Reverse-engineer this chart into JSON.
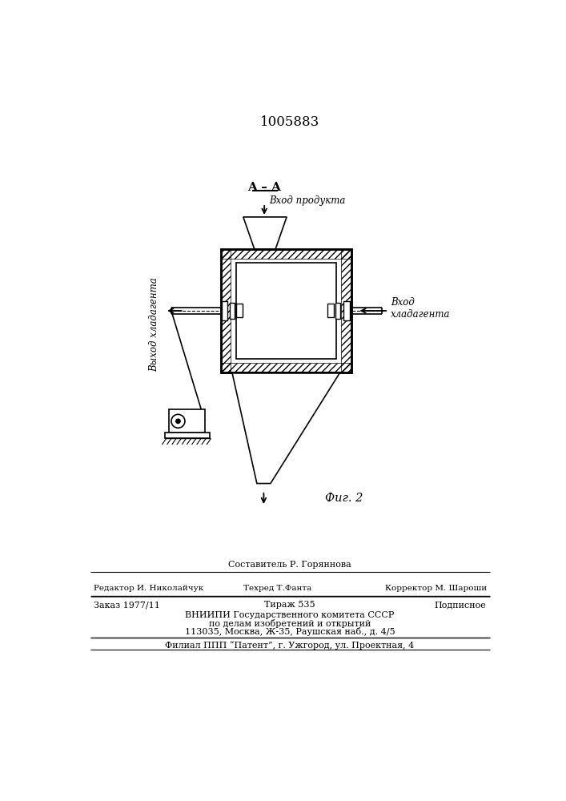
{
  "title": "1005883",
  "fig_label": "Фиг. 2",
  "section_label": "A – A",
  "label_vhod_produkta": "Вход продукта",
  "label_vhod_hladagenta": "Вход\nхладагента",
  "label_vyhod_hladagenta": "Выход хладагента",
  "footer_comp": "Составитель Р. Горяннова",
  "footer_ed": "Редактор И. Николайчук",
  "footer_tech": "Техред Т.Фанта",
  "footer_corr": "Корректор М. Шароши",
  "footer_order": "Заказ 1977/11",
  "footer_tirazh": "Тираж 535",
  "footer_podp": "Подписное",
  "footer_org1": "ВНИИПИ Государственного комитета СССР",
  "footer_org2": "по делам изобретений и открытий",
  "footer_addr": "113035, Москва, Ж-35, Раушская наб., д. 4/5",
  "footer_filial": "Филиал ППП “Патент”, г. Ужгород, ул. Проектная, 4",
  "bg_color": "#ffffff"
}
